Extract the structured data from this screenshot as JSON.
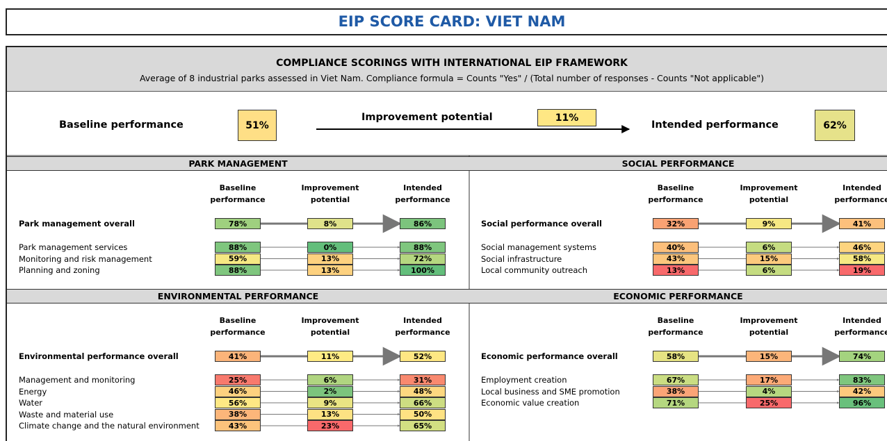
{
  "title": "EIP SCORE CARD: VIET NAM",
  "compliance": {
    "title": "COMPLIANCE SCORINGS WITH INTERNATIONAL EIP FRAMEWORK",
    "subtitle": "Average of 8 industrial parks assessed in Viet Nam. Compliance formula = Counts \"Yes\" / (Total number of responses - Counts \"Not applicable\")"
  },
  "summary": {
    "baseline": {
      "label": "Baseline performance",
      "value": "51%",
      "color": "#fedf86"
    },
    "improvement": {
      "label": "Improvement potential",
      "value": "11%",
      "color": "#fee784"
    },
    "intended": {
      "label": "Intended performance",
      "value": "62%",
      "color": "#e6e28a"
    }
  },
  "panels": [
    {
      "title": "PARK MANAGEMENT",
      "columns": [
        "Baseline performance",
        "Improvement potential",
        "Intended performance"
      ],
      "overall": {
        "label": "Park management overall",
        "cells": [
          {
            "value": "78%",
            "color": "#9fd07f"
          },
          {
            "value": "8%",
            "color": "#dfe28a"
          },
          {
            "value": "86%",
            "color": "#7cc47d"
          }
        ]
      },
      "items": [
        {
          "label": "Park management services",
          "cells": [
            {
              "value": "88%",
              "color": "#7fc67e"
            },
            {
              "value": "0%",
              "color": "#63be7b"
            },
            {
              "value": "88%",
              "color": "#7fc67e"
            }
          ]
        },
        {
          "label": "Monitoring and risk management",
          "cells": [
            {
              "value": "59%",
              "color": "#f6e883"
            },
            {
              "value": "13%",
              "color": "#fdd17f"
            },
            {
              "value": "72%",
              "color": "#b5d780"
            }
          ]
        },
        {
          "label": "Planning and zoning",
          "cells": [
            {
              "value": "88%",
              "color": "#7fc67e"
            },
            {
              "value": "13%",
              "color": "#fdd17f"
            },
            {
              "value": "100%",
              "color": "#63be7b"
            }
          ]
        }
      ]
    },
    {
      "title": "SOCIAL PERFORMANCE",
      "columns": [
        "Baseline performance",
        "Improvement potential",
        "Intended performance"
      ],
      "overall": {
        "label": "Social performance overall",
        "cells": [
          {
            "value": "32%",
            "color": "#f9a273"
          },
          {
            "value": "9%",
            "color": "#f6e883"
          },
          {
            "value": "41%",
            "color": "#fcc07c"
          }
        ]
      },
      "items": [
        {
          "label": "Social management systems",
          "cells": [
            {
              "value": "40%",
              "color": "#fcbf7b"
            },
            {
              "value": "6%",
              "color": "#c5dc81"
            },
            {
              "value": "46%",
              "color": "#fdd47f"
            }
          ]
        },
        {
          "label": "Social infrastructure",
          "cells": [
            {
              "value": "43%",
              "color": "#fcc67d"
            },
            {
              "value": "15%",
              "color": "#fcca7d"
            },
            {
              "value": "58%",
              "color": "#f6e883"
            }
          ]
        },
        {
          "label": "Local community outreach",
          "cells": [
            {
              "value": "13%",
              "color": "#f8696b"
            },
            {
              "value": "6%",
              "color": "#c5dc81"
            },
            {
              "value": "19%",
              "color": "#f8696b"
            }
          ]
        }
      ]
    },
    {
      "title": "ENVIRONMENTAL PERFORMANCE",
      "columns": [
        "Baseline performance",
        "Improvement potential",
        "Intended performance"
      ],
      "overall": {
        "label": "Environmental performance overall",
        "cells": [
          {
            "value": "41%",
            "color": "#fbb47a"
          },
          {
            "value": "11%",
            "color": "#feeb84"
          },
          {
            "value": "52%",
            "color": "#fee783"
          }
        ]
      },
      "items": [
        {
          "label": "Management and monitoring",
          "cells": [
            {
              "value": "25%",
              "color": "#f8796d"
            },
            {
              "value": "6%",
              "color": "#b0d580"
            },
            {
              "value": "31%",
              "color": "#f9896f"
            }
          ]
        },
        {
          "label": "Energy",
          "cells": [
            {
              "value": "46%",
              "color": "#fdd17f"
            },
            {
              "value": "2%",
              "color": "#7cc47d"
            },
            {
              "value": "48%",
              "color": "#fdd880"
            }
          ]
        },
        {
          "label": "Water",
          "cells": [
            {
              "value": "56%",
              "color": "#fee884"
            },
            {
              "value": "9%",
              "color": "#e9e483"
            },
            {
              "value": "66%",
              "color": "#cddd82"
            }
          ]
        },
        {
          "label": "Waste and material use",
          "cells": [
            {
              "value": "38%",
              "color": "#fcb67a"
            },
            {
              "value": "13%",
              "color": "#fde283"
            },
            {
              "value": "50%",
              "color": "#fee283"
            }
          ]
        },
        {
          "label": "Climate change and the natural environment",
          "cells": [
            {
              "value": "43%",
              "color": "#fcc37c"
            },
            {
              "value": "23%",
              "color": "#f8696b"
            },
            {
              "value": "65%",
              "color": "#d2df82"
            }
          ]
        }
      ]
    },
    {
      "title": "ECONOMIC PERFORMANCE",
      "columns": [
        "Baseline performance",
        "Improvement potential",
        "Intended performance"
      ],
      "overall": {
        "label": "Economic performance overall",
        "cells": [
          {
            "value": "58%",
            "color": "#e6e383"
          },
          {
            "value": "15%",
            "color": "#fbb57a"
          },
          {
            "value": "74%",
            "color": "#a4d37f"
          }
        ]
      },
      "items": [
        {
          "label": "Employment creation",
          "cells": [
            {
              "value": "67%",
              "color": "#cadd82"
            },
            {
              "value": "17%",
              "color": "#fcaa77"
            },
            {
              "value": "83%",
              "color": "#7fc67e"
            }
          ]
        },
        {
          "label": "Local business and SME promotion",
          "cells": [
            {
              "value": "38%",
              "color": "#fba477"
            },
            {
              "value": "4%",
              "color": "#b6d780"
            },
            {
              "value": "42%",
              "color": "#fdc97d"
            }
          ]
        },
        {
          "label": "Economic value creation",
          "cells": [
            {
              "value": "71%",
              "color": "#b5d780"
            },
            {
              "value": "25%",
              "color": "#f8696b"
            },
            {
              "value": "96%",
              "color": "#69c07c"
            }
          ]
        }
      ]
    }
  ]
}
